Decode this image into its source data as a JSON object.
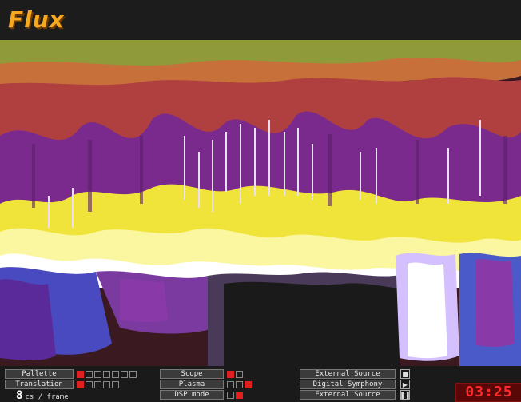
{
  "app": {
    "title": "Flux"
  },
  "colors": {
    "title": "#f6a81e",
    "timer": "#ff2a2a",
    "toggle_on": "#e02020"
  },
  "controls": {
    "palette_label": "Pallette",
    "translation_label": "Translation",
    "scope_label": "Scope",
    "plasma_label": "Plasma",
    "dsp_label": "DSP mode",
    "source_group": {
      "external_label": "External Source",
      "digital_label": "Digital Symphony",
      "external2_label": "External Source"
    }
  },
  "frame_rate": {
    "value": "8",
    "unit": "cs / frame"
  },
  "timer": {
    "value": "03:25"
  },
  "icons": [
    "stop-icon",
    "play-icon",
    "pause-icon"
  ]
}
